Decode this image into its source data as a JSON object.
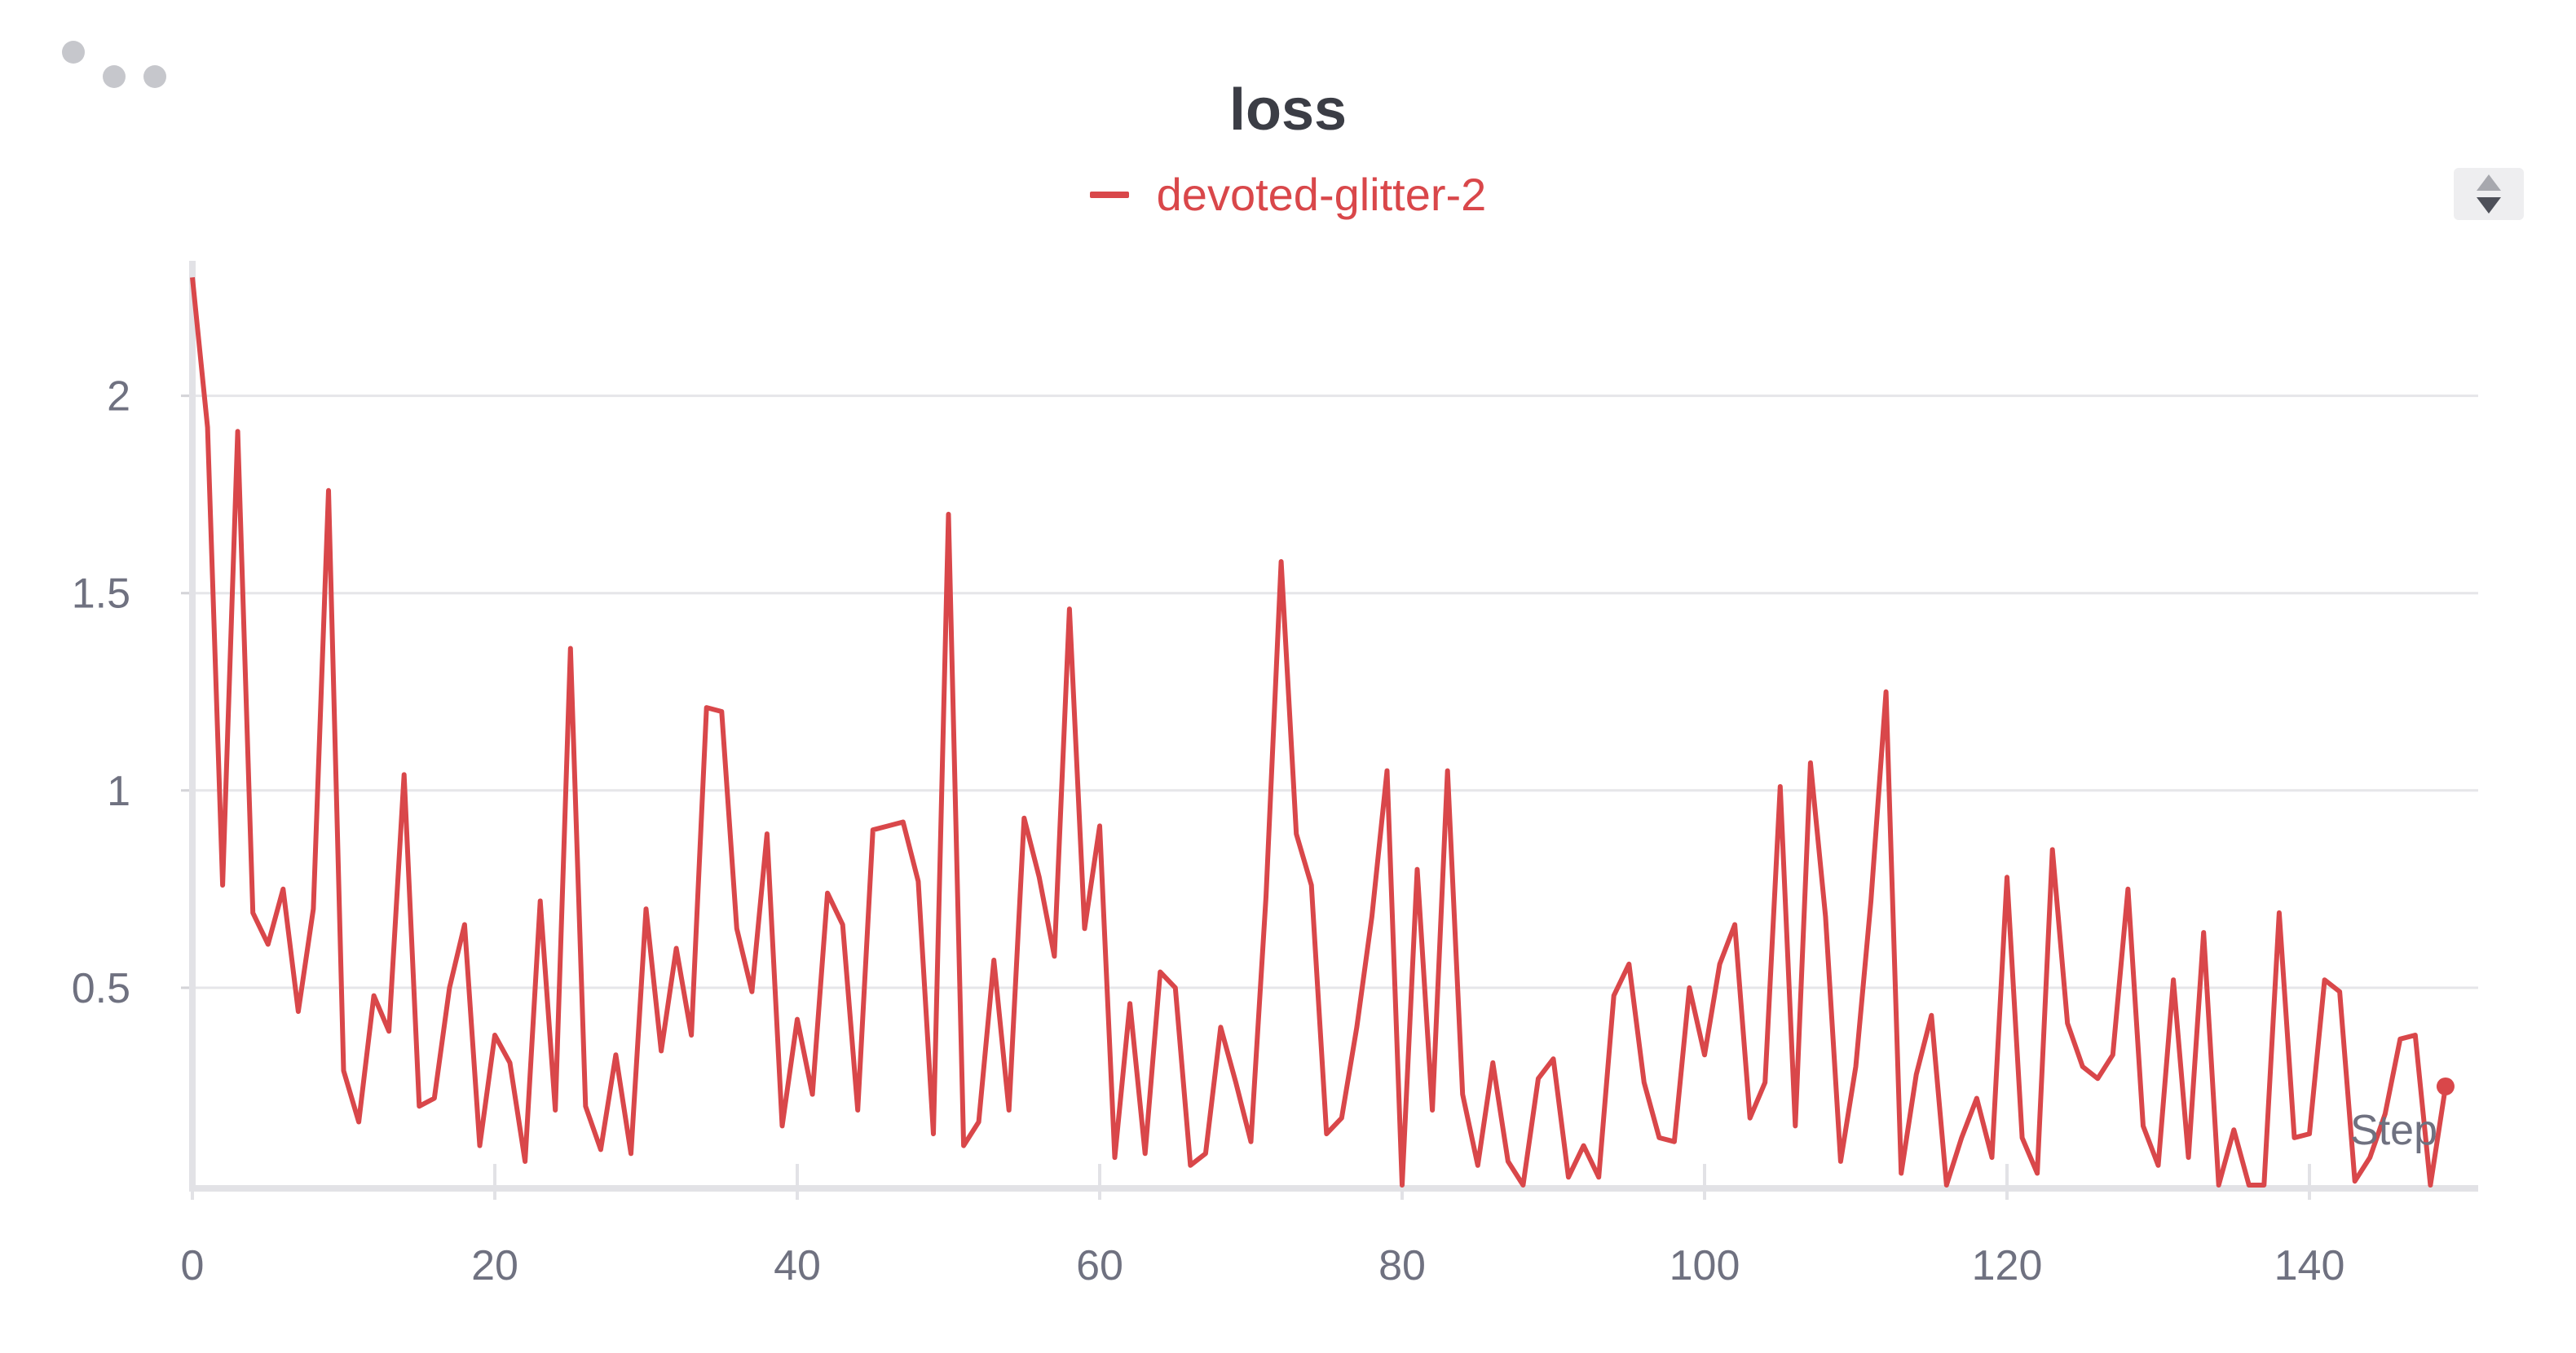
{
  "panel": {
    "menu_icon": "dots-icon",
    "scroll_icon": "up-down-arrows-icon"
  },
  "chart_data": {
    "type": "line",
    "title": "loss",
    "xlabel": "Step",
    "ylabel": "",
    "xlim": [
      0,
      149
    ],
    "ylim": [
      0,
      2.3
    ],
    "xticks": [
      0,
      20,
      40,
      60,
      80,
      100,
      120,
      140
    ],
    "yticks": [
      0.5,
      1,
      1.5,
      2
    ],
    "ytick_labels": [
      "0.5",
      "1",
      "1.5",
      "2"
    ],
    "grid": true,
    "legend_position": "top-center",
    "series": [
      {
        "name": "devoted-glitter-2",
        "color": "#d9474a",
        "x": [
          0,
          1,
          2,
          3,
          4,
          5,
          6,
          7,
          8,
          9,
          10,
          11,
          12,
          13,
          14,
          15,
          16,
          17,
          18,
          19,
          20,
          21,
          22,
          23,
          24,
          25,
          26,
          27,
          28,
          29,
          30,
          31,
          32,
          33,
          34,
          35,
          36,
          37,
          38,
          39,
          40,
          41,
          42,
          43,
          44,
          45,
          46,
          47,
          48,
          49,
          50,
          51,
          52,
          53,
          54,
          55,
          56,
          57,
          58,
          59,
          60,
          61,
          62,
          63,
          64,
          65,
          66,
          67,
          68,
          69,
          70,
          71,
          72,
          73,
          74,
          75,
          76,
          77,
          78,
          79,
          80,
          81,
          82,
          83,
          84,
          85,
          86,
          87,
          88,
          89,
          90,
          91,
          92,
          93,
          94,
          95,
          96,
          97,
          98,
          99,
          100,
          101,
          102,
          103,
          104,
          105,
          106,
          107,
          108,
          109,
          110,
          111,
          112,
          113,
          114,
          115,
          116,
          117,
          118,
          119,
          120,
          121,
          122,
          123,
          124,
          125,
          126,
          127,
          128,
          129,
          130,
          131,
          132,
          133,
          134,
          135,
          136,
          137,
          138,
          139,
          140,
          141,
          142,
          143,
          144,
          145,
          146,
          147,
          148,
          149
        ],
        "y": [
          2.3,
          1.92,
          0.76,
          1.91,
          0.69,
          0.61,
          0.75,
          0.44,
          0.7,
          1.76,
          0.29,
          0.16,
          0.48,
          0.39,
          1.04,
          0.2,
          0.22,
          0.5,
          0.66,
          0.1,
          0.38,
          0.31,
          0.06,
          0.72,
          0.19,
          1.36,
          0.2,
          0.09,
          0.33,
          0.08,
          0.7,
          0.34,
          0.6,
          0.38,
          1.21,
          1.2,
          0.65,
          0.49,
          0.89,
          0.15,
          0.42,
          0.23,
          0.74,
          0.66,
          0.19,
          0.9,
          0.91,
          0.92,
          0.77,
          0.13,
          1.7,
          0.1,
          0.16,
          0.57,
          0.19,
          0.93,
          0.78,
          0.58,
          1.46,
          0.65,
          0.91,
          0.07,
          0.46,
          0.08,
          0.54,
          0.5,
          0.05,
          0.08,
          0.4,
          0.26,
          0.11,
          0.73,
          1.58,
          0.89,
          0.76,
          0.13,
          0.17,
          0.4,
          0.68,
          1.05,
          0.0,
          0.8,
          0.19,
          1.05,
          0.23,
          0.05,
          0.31,
          0.06,
          0.0,
          0.27,
          0.32,
          0.02,
          0.1,
          0.02,
          0.48,
          0.56,
          0.26,
          0.12,
          0.11,
          0.5,
          0.33,
          0.56,
          0.66,
          0.17,
          0.26,
          1.01,
          0.15,
          1.07,
          0.68,
          0.06,
          0.3,
          0.72,
          1.25,
          0.03,
          0.28,
          0.43,
          0.0,
          0.12,
          0.22,
          0.07,
          0.78,
          0.12,
          0.03,
          0.85,
          0.41,
          0.3,
          0.27,
          0.33,
          0.75,
          0.15,
          0.05,
          0.52,
          0.07,
          0.64,
          0.0,
          0.14,
          0.0,
          0.0,
          0.69,
          0.12,
          0.13,
          0.52,
          0.49,
          0.01,
          0.07,
          0.18,
          0.37,
          0.38,
          0.0,
          0.25
        ]
      }
    ]
  }
}
